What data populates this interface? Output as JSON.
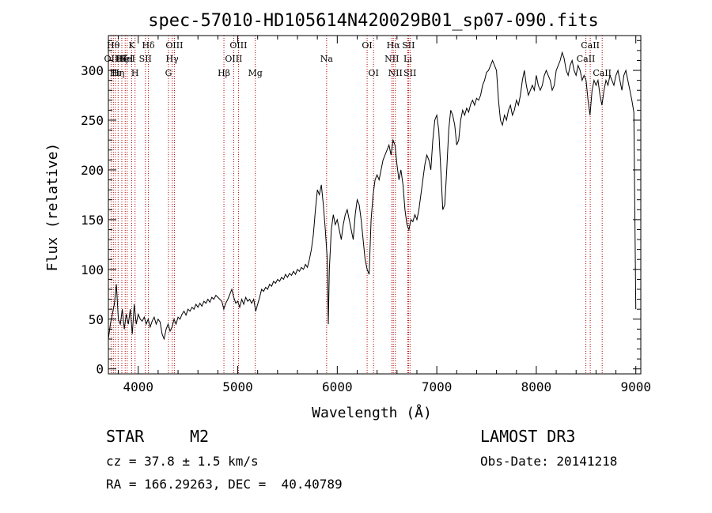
{
  "chart_data": {
    "type": "line",
    "title": "spec-57010-HD105614N420029B01_sp07-090.fits",
    "xlabel": "Wavelength (Å)",
    "ylabel": "Flux (relative)",
    "xlim": [
      3700,
      9050
    ],
    "ylim": [
      -5,
      335
    ],
    "x_ticks": [
      4000,
      5000,
      6000,
      7000,
      8000,
      9000
    ],
    "y_ticks": [
      0,
      50,
      100,
      150,
      200,
      250,
      300
    ],
    "grid": false,
    "series": [
      {
        "color": "#000000",
        "points": [
          [
            3700,
            30
          ],
          [
            3720,
            45
          ],
          [
            3740,
            55
          ],
          [
            3760,
            65
          ],
          [
            3780,
            85
          ],
          [
            3800,
            50
          ],
          [
            3820,
            45
          ],
          [
            3840,
            60
          ],
          [
            3860,
            40
          ],
          [
            3880,
            55
          ],
          [
            3900,
            45
          ],
          [
            3920,
            60
          ],
          [
            3940,
            35
          ],
          [
            3960,
            65
          ],
          [
            3980,
            45
          ],
          [
            4000,
            55
          ],
          [
            4020,
            50
          ],
          [
            4040,
            48
          ],
          [
            4060,
            52
          ],
          [
            4080,
            45
          ],
          [
            4100,
            50
          ],
          [
            4120,
            42
          ],
          [
            4140,
            48
          ],
          [
            4160,
            52
          ],
          [
            4180,
            45
          ],
          [
            4200,
            50
          ],
          [
            4220,
            47
          ],
          [
            4240,
            35
          ],
          [
            4260,
            30
          ],
          [
            4280,
            40
          ],
          [
            4300,
            45
          ],
          [
            4320,
            38
          ],
          [
            4340,
            42
          ],
          [
            4360,
            50
          ],
          [
            4380,
            45
          ],
          [
            4400,
            52
          ],
          [
            4420,
            50
          ],
          [
            4440,
            55
          ],
          [
            4460,
            58
          ],
          [
            4480,
            54
          ],
          [
            4500,
            60
          ],
          [
            4520,
            58
          ],
          [
            4540,
            62
          ],
          [
            4560,
            60
          ],
          [
            4580,
            65
          ],
          [
            4600,
            62
          ],
          [
            4620,
            66
          ],
          [
            4640,
            63
          ],
          [
            4660,
            68
          ],
          [
            4680,
            66
          ],
          [
            4700,
            70
          ],
          [
            4720,
            67
          ],
          [
            4740,
            72
          ],
          [
            4760,
            70
          ],
          [
            4780,
            74
          ],
          [
            4800,
            72
          ],
          [
            4820,
            70
          ],
          [
            4840,
            68
          ],
          [
            4860,
            60
          ],
          [
            4880,
            66
          ],
          [
            4900,
            70
          ],
          [
            4920,
            75
          ],
          [
            4940,
            80
          ],
          [
            4960,
            72
          ],
          [
            4980,
            66
          ],
          [
            5000,
            68
          ],
          [
            5020,
            62
          ],
          [
            5040,
            70
          ],
          [
            5060,
            65
          ],
          [
            5080,
            72
          ],
          [
            5100,
            68
          ],
          [
            5120,
            70
          ],
          [
            5140,
            66
          ],
          [
            5160,
            70
          ],
          [
            5180,
            58
          ],
          [
            5200,
            65
          ],
          [
            5220,
            72
          ],
          [
            5240,
            80
          ],
          [
            5260,
            78
          ],
          [
            5280,
            82
          ],
          [
            5300,
            80
          ],
          [
            5320,
            85
          ],
          [
            5340,
            83
          ],
          [
            5360,
            88
          ],
          [
            5380,
            86
          ],
          [
            5400,
            90
          ],
          [
            5420,
            88
          ],
          [
            5440,
            92
          ],
          [
            5460,
            90
          ],
          [
            5480,
            95
          ],
          [
            5500,
            92
          ],
          [
            5520,
            96
          ],
          [
            5540,
            94
          ],
          [
            5560,
            98
          ],
          [
            5580,
            95
          ],
          [
            5600,
            100
          ],
          [
            5620,
            98
          ],
          [
            5640,
            102
          ],
          [
            5660,
            100
          ],
          [
            5680,
            105
          ],
          [
            5700,
            102
          ],
          [
            5720,
            110
          ],
          [
            5740,
            120
          ],
          [
            5760,
            135
          ],
          [
            5780,
            160
          ],
          [
            5800,
            180
          ],
          [
            5820,
            175
          ],
          [
            5840,
            185
          ],
          [
            5860,
            165
          ],
          [
            5880,
            140
          ],
          [
            5900,
            110
          ],
          [
            5910,
            45
          ],
          [
            5920,
            100
          ],
          [
            5940,
            140
          ],
          [
            5960,
            155
          ],
          [
            5980,
            145
          ],
          [
            6000,
            150
          ],
          [
            6020,
            140
          ],
          [
            6040,
            130
          ],
          [
            6060,
            145
          ],
          [
            6080,
            155
          ],
          [
            6100,
            160
          ],
          [
            6120,
            150
          ],
          [
            6140,
            140
          ],
          [
            6160,
            130
          ],
          [
            6180,
            155
          ],
          [
            6200,
            170
          ],
          [
            6220,
            165
          ],
          [
            6240,
            150
          ],
          [
            6260,
            130
          ],
          [
            6280,
            110
          ],
          [
            6300,
            100
          ],
          [
            6320,
            95
          ],
          [
            6340,
            150
          ],
          [
            6360,
            175
          ],
          [
            6380,
            190
          ],
          [
            6400,
            195
          ],
          [
            6420,
            190
          ],
          [
            6440,
            200
          ],
          [
            6460,
            210
          ],
          [
            6480,
            215
          ],
          [
            6500,
            220
          ],
          [
            6520,
            225
          ],
          [
            6540,
            215
          ],
          [
            6560,
            230
          ],
          [
            6580,
            225
          ],
          [
            6600,
            205
          ],
          [
            6620,
            190
          ],
          [
            6640,
            200
          ],
          [
            6660,
            185
          ],
          [
            6680,
            160
          ],
          [
            6700,
            145
          ],
          [
            6720,
            140
          ],
          [
            6740,
            150
          ],
          [
            6760,
            148
          ],
          [
            6780,
            155
          ],
          [
            6800,
            150
          ],
          [
            6820,
            160
          ],
          [
            6840,
            175
          ],
          [
            6860,
            190
          ],
          [
            6880,
            205
          ],
          [
            6900,
            215
          ],
          [
            6920,
            210
          ],
          [
            6940,
            200
          ],
          [
            6960,
            230
          ],
          [
            6980,
            250
          ],
          [
            7000,
            255
          ],
          [
            7020,
            240
          ],
          [
            7040,
            200
          ],
          [
            7060,
            160
          ],
          [
            7080,
            165
          ],
          [
            7100,
            200
          ],
          [
            7120,
            240
          ],
          [
            7140,
            260
          ],
          [
            7160,
            255
          ],
          [
            7180,
            245
          ],
          [
            7200,
            225
          ],
          [
            7220,
            230
          ],
          [
            7240,
            250
          ],
          [
            7260,
            260
          ],
          [
            7280,
            255
          ],
          [
            7300,
            262
          ],
          [
            7320,
            258
          ],
          [
            7340,
            266
          ],
          [
            7360,
            270
          ],
          [
            7380,
            265
          ],
          [
            7400,
            272
          ],
          [
            7420,
            270
          ],
          [
            7440,
            275
          ],
          [
            7460,
            285
          ],
          [
            7480,
            290
          ],
          [
            7500,
            298
          ],
          [
            7520,
            300
          ],
          [
            7540,
            305
          ],
          [
            7560,
            310
          ],
          [
            7580,
            305
          ],
          [
            7600,
            300
          ],
          [
            7620,
            270
          ],
          [
            7640,
            250
          ],
          [
            7660,
            245
          ],
          [
            7680,
            255
          ],
          [
            7700,
            250
          ],
          [
            7720,
            260
          ],
          [
            7740,
            265
          ],
          [
            7760,
            255
          ],
          [
            7780,
            260
          ],
          [
            7800,
            270
          ],
          [
            7820,
            265
          ],
          [
            7840,
            275
          ],
          [
            7860,
            290
          ],
          [
            7880,
            300
          ],
          [
            7900,
            285
          ],
          [
            7920,
            275
          ],
          [
            7940,
            280
          ],
          [
            7960,
            285
          ],
          [
            7980,
            280
          ],
          [
            8000,
            295
          ],
          [
            8020,
            285
          ],
          [
            8040,
            280
          ],
          [
            8060,
            285
          ],
          [
            8080,
            295
          ],
          [
            8100,
            300
          ],
          [
            8120,
            295
          ],
          [
            8140,
            290
          ],
          [
            8160,
            280
          ],
          [
            8180,
            285
          ],
          [
            8200,
            300
          ],
          [
            8220,
            305
          ],
          [
            8240,
            310
          ],
          [
            8260,
            318
          ],
          [
            8280,
            312
          ],
          [
            8300,
            300
          ],
          [
            8320,
            295
          ],
          [
            8340,
            305
          ],
          [
            8360,
            310
          ],
          [
            8380,
            300
          ],
          [
            8400,
            295
          ],
          [
            8420,
            305
          ],
          [
            8440,
            300
          ],
          [
            8460,
            290
          ],
          [
            8480,
            295
          ],
          [
            8500,
            290
          ],
          [
            8520,
            270
          ],
          [
            8540,
            255
          ],
          [
            8560,
            280
          ],
          [
            8580,
            290
          ],
          [
            8600,
            285
          ],
          [
            8620,
            290
          ],
          [
            8640,
            275
          ],
          [
            8660,
            265
          ],
          [
            8680,
            280
          ],
          [
            8700,
            290
          ],
          [
            8720,
            285
          ],
          [
            8740,
            295
          ],
          [
            8760,
            290
          ],
          [
            8780,
            285
          ],
          [
            8800,
            295
          ],
          [
            8820,
            300
          ],
          [
            8840,
            290
          ],
          [
            8860,
            280
          ],
          [
            8880,
            295
          ],
          [
            8900,
            300
          ],
          [
            8920,
            290
          ],
          [
            8940,
            280
          ],
          [
            8960,
            270
          ],
          [
            8980,
            258
          ],
          [
            9000,
            60
          ]
        ]
      }
    ],
    "spectral_lines": [
      {
        "x": 3727,
        "label": "OII",
        "row": 1
      },
      {
        "x": 3750,
        "label": "Hθ",
        "row": 0
      },
      {
        "x": 3770,
        "label": "Hι",
        "row": 2
      },
      {
        "x": 3798,
        "label": "Hη",
        "row": 2
      },
      {
        "x": 3835,
        "label": "Hζ",
        "row": 1
      },
      {
        "x": 3869,
        "label": "HeI",
        "row": 1
      },
      {
        "x": 3889,
        "label": "HeI",
        "row": 1
      },
      {
        "x": 3934,
        "label": "K",
        "row": 0
      },
      {
        "x": 3968,
        "label": "H",
        "row": 2
      },
      {
        "x": 4072,
        "label": "SII",
        "row": 1
      },
      {
        "x": 4102,
        "label": "Hδ",
        "row": 0
      },
      {
        "x": 4304,
        "label": "G",
        "row": 2
      },
      {
        "x": 4341,
        "label": "Hγ",
        "row": 1
      },
      {
        "x": 4363,
        "label": "OIII",
        "row": 0
      },
      {
        "x": 4861,
        "label": "Hβ",
        "row": 2
      },
      {
        "x": 4959,
        "label": "OIII",
        "row": 1
      },
      {
        "x": 5007,
        "label": "OIII",
        "row": 0
      },
      {
        "x": 5176,
        "label": "Mg",
        "row": 2
      },
      {
        "x": 5893,
        "label": "Na",
        "row": 1
      },
      {
        "x": 6300,
        "label": "OI",
        "row": 0
      },
      {
        "x": 6364,
        "label": "OI",
        "row": 2
      },
      {
        "x": 6548,
        "label": "NII",
        "row": 1
      },
      {
        "x": 6563,
        "label": "Hα",
        "row": 0
      },
      {
        "x": 6583,
        "label": "NII",
        "row": 2
      },
      {
        "x": 6708,
        "label": "Li",
        "row": 1
      },
      {
        "x": 6716,
        "label": "SII",
        "row": 0
      },
      {
        "x": 6731,
        "label": "SII",
        "row": 2
      },
      {
        "x": 8498,
        "label": "CaII",
        "row": 1
      },
      {
        "x": 8542,
        "label": "CaII",
        "row": 0
      },
      {
        "x": 8662,
        "label": "CaII",
        "row": 2
      }
    ],
    "line_color": "#b00000"
  },
  "info": {
    "class": "STAR",
    "subclass": "M2",
    "survey": "LAMOST DR3",
    "cz": "cz = 37.8 ± 1.5 km/s",
    "obs_date": "Obs-Date: 20141218",
    "coords": "RA = 166.29263, DEC =  40.40789"
  }
}
